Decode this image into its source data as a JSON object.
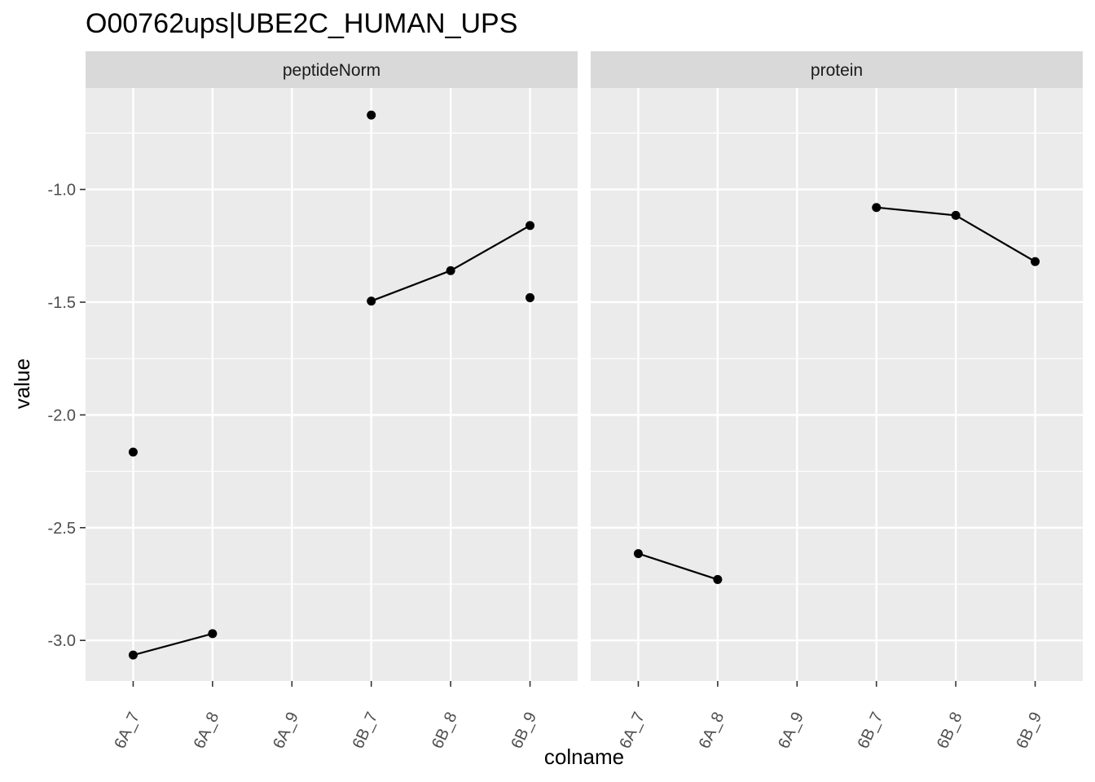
{
  "chart_data": {
    "type": "line",
    "title": "O00762ups|UBE2C_HUMAN_UPS",
    "xlabel": "colname",
    "ylabel": "value",
    "categories": [
      "6A_7",
      "6A_8",
      "6A_9",
      "6B_7",
      "6B_8",
      "6B_9"
    ],
    "y_ticks": [
      "-1.0",
      "-1.5",
      "-2.0",
      "-2.5",
      "-3.0"
    ],
    "y_tick_values": [
      -1.0,
      -1.5,
      -2.0,
      -2.5,
      -3.0
    ],
    "ylim": [
      -3.18,
      -0.55
    ],
    "grid": true,
    "panels": [
      {
        "label": "peptideNorm",
        "lines": [
          {
            "points": [
              [
                "6A_7",
                -3.065
              ],
              [
                "6A_8",
                -2.97
              ]
            ]
          },
          {
            "points": [
              [
                "6B_7",
                -1.495
              ],
              [
                "6B_8",
                -1.36
              ],
              [
                "6B_9",
                -1.16
              ]
            ]
          }
        ],
        "points": [
          [
            "6A_7",
            -3.065
          ],
          [
            "6A_8",
            -2.97
          ],
          [
            "6B_7",
            -1.495
          ],
          [
            "6B_8",
            -1.36
          ],
          [
            "6B_9",
            -1.16
          ],
          [
            "6A_7",
            -2.165
          ],
          [
            "6B_7",
            -0.67
          ],
          [
            "6B_9",
            -1.48
          ]
        ]
      },
      {
        "label": "protein",
        "lines": [
          {
            "points": [
              [
                "6A_7",
                -2.615
              ],
              [
                "6A_8",
                -2.73
              ]
            ]
          },
          {
            "points": [
              [
                "6B_7",
                -1.08
              ],
              [
                "6B_8",
                -1.115
              ],
              [
                "6B_9",
                -1.32
              ]
            ]
          }
        ],
        "points": [
          [
            "6A_7",
            -2.615
          ],
          [
            "6A_8",
            -2.73
          ],
          [
            "6B_7",
            -1.08
          ],
          [
            "6B_8",
            -1.115
          ],
          [
            "6B_9",
            -1.32
          ]
        ]
      }
    ]
  }
}
